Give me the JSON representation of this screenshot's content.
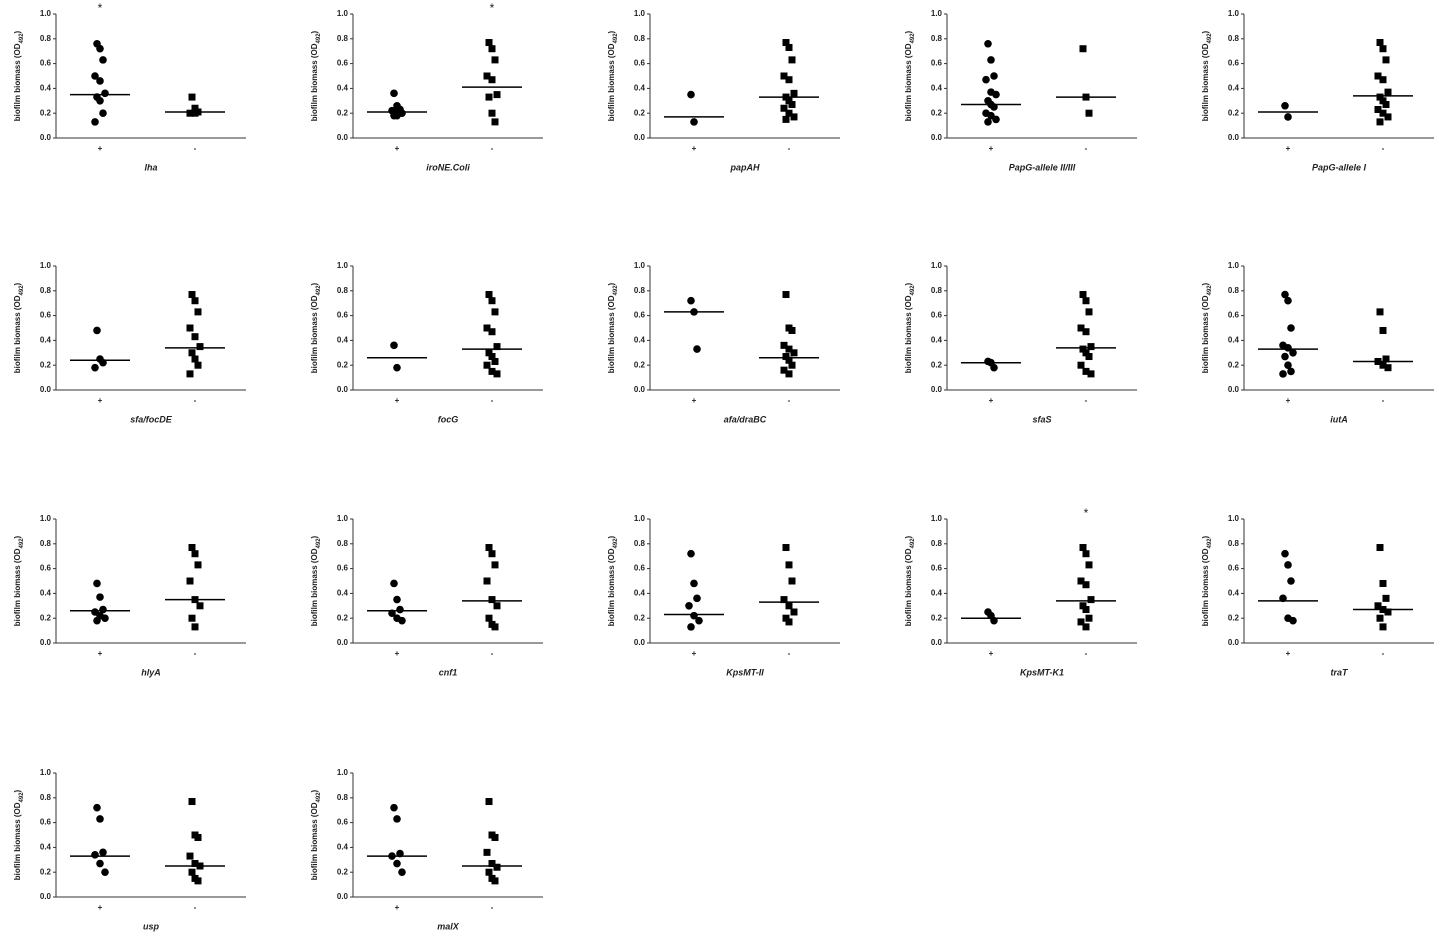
{
  "chart_data": [
    {
      "type": "dot",
      "xlabel": "lha",
      "categories": [
        "+",
        "-"
      ],
      "markers": [
        "circle",
        "square"
      ],
      "values": [
        [
          0.76,
          0.72,
          0.63,
          0.5,
          0.46,
          0.36,
          0.33,
          0.3,
          0.2,
          0.13
        ],
        [
          0.33,
          0.24,
          0.21,
          0.2,
          0.2
        ]
      ],
      "medians": [
        0.35,
        0.21
      ],
      "annotation": {
        "text": "*",
        "over": "+"
      },
      "ylabel": "biofilm biomass (OD",
      "ylabel_subscript": "492",
      "ylabel_close": ")",
      "ylim": [
        0,
        1
      ],
      "yticks": [
        {
          "value": 0,
          "label": "0.0"
        },
        0.2,
        0.4,
        0.6,
        0.8,
        {
          "value": 1,
          "label": "1.0"
        }
      ]
    },
    {
      "type": "dot",
      "xlabel": "iroNE.Coli",
      "categories": [
        "+",
        "-"
      ],
      "markers": [
        "circle",
        "square"
      ],
      "values": [
        [
          0.36,
          0.26,
          0.23,
          0.22,
          0.21,
          0.2,
          0.18,
          0.18
        ],
        [
          0.77,
          0.72,
          0.63,
          0.5,
          0.47,
          0.35,
          0.33,
          0.2,
          0.13
        ]
      ],
      "medians": [
        0.21,
        0.41
      ],
      "annotation": {
        "text": "*",
        "over": "-"
      },
      "ylabel": "biofilm biomass (OD",
      "ylabel_subscript": "492",
      "ylabel_close": ")",
      "ylim": [
        0,
        1
      ],
      "yticks": [
        {
          "value": 0,
          "label": "0.0"
        },
        0.2,
        0.4,
        0.6,
        0.8,
        {
          "value": 1,
          "label": "1.0"
        }
      ]
    },
    {
      "type": "dot",
      "xlabel": "papAH",
      "categories": [
        "+",
        "-"
      ],
      "markers": [
        "circle",
        "square"
      ],
      "values": [
        [
          0.35,
          0.13
        ],
        [
          0.77,
          0.73,
          0.63,
          0.5,
          0.47,
          0.36,
          0.33,
          0.3,
          0.27,
          0.24,
          0.2,
          0.17,
          0.15
        ]
      ],
      "medians": [
        0.17,
        0.33
      ],
      "ylabel": "biofilm biomass (OD",
      "ylabel_subscript": "492",
      "ylabel_close": ")",
      "ylim": [
        0,
        1
      ],
      "yticks": [
        {
          "value": 0,
          "label": "0.0"
        },
        0.2,
        0.4,
        0.6,
        0.8,
        {
          "value": 1,
          "label": "1.0"
        }
      ]
    },
    {
      "type": "dot",
      "xlabel": "PapG-allele II/III",
      "categories": [
        "+",
        "-"
      ],
      "markers": [
        "circle",
        "square"
      ],
      "values": [
        [
          0.76,
          0.63,
          0.5,
          0.47,
          0.37,
          0.35,
          0.3,
          0.27,
          0.25,
          0.2,
          0.18,
          0.15,
          0.13
        ],
        [
          0.72,
          0.33,
          0.2
        ]
      ],
      "medians": [
        0.27,
        0.33
      ],
      "ylabel": "biofilm biomass (OD",
      "ylabel_subscript": "492",
      "ylabel_close": ")",
      "ylim": [
        0,
        1
      ],
      "yticks": [
        {
          "value": 0,
          "label": "0.0"
        },
        0.2,
        0.4,
        0.6,
        0.8,
        {
          "value": 1,
          "label": "1.0"
        }
      ]
    },
    {
      "type": "dot",
      "xlabel": "PapG-allele I",
      "categories": [
        "+",
        "-"
      ],
      "markers": [
        "circle",
        "square"
      ],
      "values": [
        [
          0.26,
          0.17
        ],
        [
          0.77,
          0.72,
          0.63,
          0.5,
          0.47,
          0.37,
          0.33,
          0.3,
          0.27,
          0.23,
          0.2,
          0.17,
          0.13
        ]
      ],
      "medians": [
        0.21,
        0.34
      ],
      "ylabel": "biofilm biomass (OD",
      "ylabel_subscript": "492",
      "ylabel_close": ")",
      "ylim": [
        0,
        1
      ],
      "yticks": [
        {
          "value": 0,
          "label": "0.0"
        },
        0.2,
        0.4,
        0.6,
        0.8,
        {
          "value": 1,
          "label": "1.0"
        }
      ]
    },
    {
      "type": "dot",
      "xlabel": "sfa/focDE",
      "categories": [
        "+",
        "-"
      ],
      "markers": [
        "circle",
        "square"
      ],
      "values": [
        [
          0.48,
          0.25,
          0.22,
          0.18
        ],
        [
          0.77,
          0.72,
          0.63,
          0.5,
          0.43,
          0.35,
          0.3,
          0.25,
          0.2,
          0.13
        ]
      ],
      "medians": [
        0.24,
        0.34
      ],
      "ylabel": "biofilm biomass (OD",
      "ylabel_subscript": "492",
      "ylabel_close": ")",
      "ylim": [
        0,
        1
      ],
      "yticks": [
        {
          "value": 0,
          "label": "0.0"
        },
        0.2,
        0.4,
        0.6,
        0.8,
        {
          "value": 1,
          "label": "1.0"
        }
      ]
    },
    {
      "type": "dot",
      "xlabel": "focG",
      "categories": [
        "+",
        "-"
      ],
      "markers": [
        "circle",
        "square"
      ],
      "values": [
        [
          0.36,
          0.18
        ],
        [
          0.77,
          0.72,
          0.63,
          0.5,
          0.47,
          0.35,
          0.3,
          0.27,
          0.23,
          0.2,
          0.15,
          0.13
        ]
      ],
      "medians": [
        0.26,
        0.33
      ],
      "ylabel": "biofilm biomass (OD",
      "ylabel_subscript": "492",
      "ylabel_close": ")",
      "ylim": [
        0,
        1
      ],
      "yticks": [
        {
          "value": 0,
          "label": "0.0"
        },
        0.2,
        0.4,
        0.6,
        0.8,
        {
          "value": 1,
          "label": "1.0"
        }
      ]
    },
    {
      "type": "dot",
      "xlabel": "afa/draBC",
      "categories": [
        "+",
        "-"
      ],
      "markers": [
        "circle",
        "square"
      ],
      "values": [
        [
          0.72,
          0.63,
          0.33
        ],
        [
          0.77,
          0.5,
          0.48,
          0.36,
          0.33,
          0.3,
          0.27,
          0.24,
          0.2,
          0.16,
          0.13
        ]
      ],
      "medians": [
        0.63,
        0.26
      ],
      "ylabel": "biofilm biomass (OD",
      "ylabel_subscript": "492",
      "ylabel_close": ")",
      "ylim": [
        0,
        1
      ],
      "yticks": [
        {
          "value": 0,
          "label": "0.0"
        },
        0.2,
        0.4,
        0.6,
        0.8,
        {
          "value": 1,
          "label": "1.0"
        }
      ]
    },
    {
      "type": "dot",
      "xlabel": "sfaS",
      "categories": [
        "+",
        "-"
      ],
      "markers": [
        "circle",
        "square"
      ],
      "values": [
        [
          0.23,
          0.22,
          0.18
        ],
        [
          0.77,
          0.72,
          0.63,
          0.5,
          0.47,
          0.35,
          0.33,
          0.3,
          0.27,
          0.2,
          0.15,
          0.13
        ]
      ],
      "medians": [
        0.22,
        0.34
      ],
      "ylabel": "biofilm biomass (OD",
      "ylabel_subscript": "492",
      "ylabel_close": ")",
      "ylim": [
        0,
        1
      ],
      "yticks": [
        {
          "value": 0,
          "label": "0.0"
        },
        0.2,
        0.4,
        0.6,
        0.8,
        {
          "value": 1,
          "label": "1.0"
        }
      ]
    },
    {
      "type": "dot",
      "xlabel": "iutA",
      "categories": [
        "+",
        "-"
      ],
      "markers": [
        "circle",
        "square"
      ],
      "values": [
        [
          0.77,
          0.72,
          0.5,
          0.36,
          0.34,
          0.3,
          0.27,
          0.2,
          0.15,
          0.13
        ],
        [
          0.63,
          0.48,
          0.25,
          0.23,
          0.2,
          0.18
        ]
      ],
      "medians": [
        0.33,
        0.23
      ],
      "ylabel": "biofilm biomass (OD",
      "ylabel_subscript": "492",
      "ylabel_close": ")",
      "ylim": [
        0,
        1
      ],
      "yticks": [
        {
          "value": 0,
          "label": "0.0"
        },
        0.2,
        0.4,
        0.6,
        0.8,
        {
          "value": 1,
          "label": "1.0"
        }
      ]
    },
    {
      "type": "dot",
      "xlabel": "hlyA",
      "categories": [
        "+",
        "-"
      ],
      "markers": [
        "circle",
        "square"
      ],
      "values": [
        [
          0.48,
          0.37,
          0.27,
          0.25,
          0.22,
          0.2,
          0.18
        ],
        [
          0.77,
          0.72,
          0.63,
          0.5,
          0.35,
          0.3,
          0.2,
          0.13
        ]
      ],
      "medians": [
        0.26,
        0.35
      ],
      "ylabel": "biofilm biomass (OD",
      "ylabel_subscript": "492",
      "ylabel_close": ")",
      "ylim": [
        0,
        1
      ],
      "yticks": [
        {
          "value": 0,
          "label": "0.0"
        },
        0.2,
        0.4,
        0.6,
        0.8,
        {
          "value": 1,
          "label": "1.0"
        }
      ]
    },
    {
      "type": "dot",
      "xlabel": "cnf1",
      "categories": [
        "+",
        "-"
      ],
      "markers": [
        "circle",
        "square"
      ],
      "values": [
        [
          0.48,
          0.35,
          0.27,
          0.24,
          0.2,
          0.18
        ],
        [
          0.77,
          0.72,
          0.63,
          0.5,
          0.35,
          0.3,
          0.2,
          0.15,
          0.13
        ]
      ],
      "medians": [
        0.26,
        0.34
      ],
      "ylabel": "biofilm biomass (OD",
      "ylabel_subscript": "492",
      "ylabel_close": ")",
      "ylim": [
        0,
        1
      ],
      "yticks": [
        {
          "value": 0,
          "label": "0.0"
        },
        0.2,
        0.4,
        0.6,
        0.8,
        {
          "value": 1,
          "label": "1.0"
        }
      ]
    },
    {
      "type": "dot",
      "xlabel": "KpsMT-II",
      "categories": [
        "+",
        "-"
      ],
      "markers": [
        "circle",
        "square"
      ],
      "values": [
        [
          0.72,
          0.48,
          0.36,
          0.3,
          0.22,
          0.18,
          0.13
        ],
        [
          0.77,
          0.63,
          0.5,
          0.35,
          0.3,
          0.25,
          0.2,
          0.17
        ]
      ],
      "medians": [
        0.23,
        0.33
      ],
      "ylabel": "biofilm biomass (OD",
      "ylabel_subscript": "492",
      "ylabel_close": ")",
      "ylim": [
        0,
        1
      ],
      "yticks": [
        {
          "value": 0,
          "label": "0.0"
        },
        0.2,
        0.4,
        0.6,
        0.8,
        {
          "value": 1,
          "label": "1.0"
        }
      ]
    },
    {
      "type": "dot",
      "xlabel": "KpsMT-K1",
      "categories": [
        "+",
        "-"
      ],
      "markers": [
        "circle",
        "square"
      ],
      "values": [
        [
          0.25,
          0.22,
          0.18
        ],
        [
          0.77,
          0.72,
          0.63,
          0.5,
          0.47,
          0.35,
          0.3,
          0.27,
          0.2,
          0.17,
          0.13
        ]
      ],
      "medians": [
        0.2,
        0.34
      ],
      "annotation": {
        "text": "*",
        "over": "-"
      },
      "ylabel": "biofilm biomass (OD",
      "ylabel_subscript": "492",
      "ylabel_close": ")",
      "ylim": [
        0,
        1
      ],
      "yticks": [
        {
          "value": 0,
          "label": "0.0"
        },
        0.2,
        0.4,
        0.6,
        0.8,
        {
          "value": 1,
          "label": "1.0"
        }
      ]
    },
    {
      "type": "dot",
      "xlabel": "traT",
      "categories": [
        "+",
        "-"
      ],
      "markers": [
        "circle",
        "square"
      ],
      "values": [
        [
          0.72,
          0.63,
          0.5,
          0.36,
          0.2,
          0.18
        ],
        [
          0.77,
          0.48,
          0.36,
          0.3,
          0.27,
          0.25,
          0.2,
          0.13
        ]
      ],
      "medians": [
        0.34,
        0.27
      ],
      "ylabel": "biofilm biomass (OD",
      "ylabel_subscript": "492",
      "ylabel_close": ")",
      "ylim": [
        0,
        1
      ],
      "yticks": [
        {
          "value": 0,
          "label": "0.0"
        },
        0.2,
        0.4,
        0.6,
        0.8,
        {
          "value": 1,
          "label": "1.0"
        }
      ]
    },
    {
      "type": "dot",
      "xlabel": "usp",
      "categories": [
        "+",
        "-"
      ],
      "markers": [
        "circle",
        "square"
      ],
      "values": [
        [
          0.72,
          0.63,
          0.36,
          0.34,
          0.27,
          0.2
        ],
        [
          0.77,
          0.5,
          0.48,
          0.33,
          0.27,
          0.25,
          0.2,
          0.15,
          0.13
        ]
      ],
      "medians": [
        0.33,
        0.25
      ],
      "ylabel": "biofilm biomass (OD",
      "ylabel_subscript": "492",
      "ylabel_close": ")",
      "ylim": [
        0,
        1
      ],
      "yticks": [
        {
          "value": 0,
          "label": "0.0"
        },
        0.2,
        0.4,
        0.6,
        0.8,
        {
          "value": 1,
          "label": "1.0"
        }
      ]
    },
    {
      "type": "dot",
      "xlabel": "malX",
      "categories": [
        "+",
        "-"
      ],
      "markers": [
        "circle",
        "square"
      ],
      "values": [
        [
          0.72,
          0.63,
          0.35,
          0.33,
          0.27,
          0.2
        ],
        [
          0.77,
          0.5,
          0.48,
          0.36,
          0.27,
          0.24,
          0.2,
          0.15,
          0.13
        ]
      ],
      "medians": [
        0.33,
        0.25
      ],
      "ylabel": "biofilm biomass (OD",
      "ylabel_subscript": "492",
      "ylabel_close": ")",
      "ylim": [
        0,
        1
      ],
      "yticks": [
        {
          "value": 0,
          "label": "0.0"
        },
        0.2,
        0.4,
        0.6,
        0.8,
        {
          "value": 1,
          "label": "1.0"
        }
      ]
    }
  ]
}
